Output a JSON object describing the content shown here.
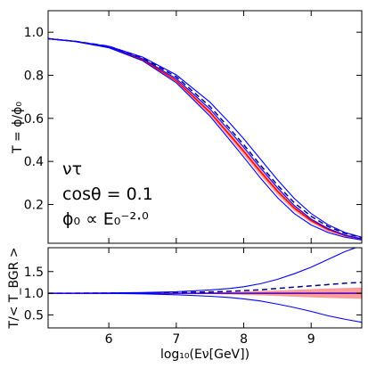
{
  "chart_data": [
    {
      "type": "line",
      "panel": "main",
      "ylabel": "T = ϕ/ϕ₀",
      "xlim": [
        5.1,
        9.75
      ],
      "ylim": [
        0.02,
        1.1
      ],
      "x_ticks": [
        6,
        7,
        8,
        9
      ],
      "y_ticks": [
        0.2,
        0.4,
        0.6,
        0.8,
        1.0
      ],
      "y_tick_labels": [
        "0.2",
        "0.4",
        "0.6",
        "0.8",
        "1.0"
      ],
      "annotations": [
        "ντ",
        "cosθ = 0.1",
        "ϕ₀ ∝ E₀⁻²·⁰"
      ],
      "x": [
        5.1,
        5.5,
        6.0,
        6.5,
        7.0,
        7.5,
        7.8,
        8.0,
        8.25,
        8.5,
        8.75,
        9.0,
        9.25,
        9.5,
        9.75
      ],
      "band": {
        "color": "#ff4d4d",
        "lower": [
          0.97,
          0.955,
          0.925,
          0.865,
          0.765,
          0.615,
          0.505,
          0.43,
          0.335,
          0.245,
          0.17,
          0.115,
          0.075,
          0.05,
          0.035
        ],
        "upper": [
          0.97,
          0.958,
          0.932,
          0.876,
          0.782,
          0.638,
          0.532,
          0.46,
          0.368,
          0.278,
          0.198,
          0.136,
          0.092,
          0.062,
          0.045
        ]
      },
      "series": [
        {
          "style": "solid",
          "color": "#ff0000",
          "values": [
            0.97,
            0.957,
            0.93,
            0.872,
            0.775,
            0.628,
            0.52,
            0.447,
            0.352,
            0.262,
            0.184,
            0.125,
            0.084,
            0.056,
            0.04
          ]
        },
        {
          "style": "dashed",
          "color": "#00008b",
          "values": [
            0.97,
            0.958,
            0.935,
            0.882,
            0.793,
            0.655,
            0.55,
            0.478,
            0.382,
            0.29,
            0.208,
            0.145,
            0.098,
            0.066,
            0.047
          ]
        },
        {
          "style": "solid",
          "color": "#0000ff",
          "values": [
            0.97,
            0.958,
            0.932,
            0.877,
            0.784,
            0.643,
            0.538,
            0.466,
            0.37,
            0.278,
            0.195,
            0.132,
            0.088,
            0.058,
            0.04
          ]
        },
        {
          "style": "solid",
          "color": "#0000ff",
          "values": [
            0.97,
            0.958,
            0.935,
            0.885,
            0.802,
            0.675,
            0.576,
            0.505,
            0.41,
            0.315,
            0.228,
            0.158,
            0.106,
            0.07,
            0.048
          ]
        },
        {
          "style": "solid",
          "color": "#0000ff",
          "values": [
            0.97,
            0.957,
            0.928,
            0.868,
            0.765,
            0.61,
            0.497,
            0.42,
            0.322,
            0.232,
            0.158,
            0.105,
            0.07,
            0.048,
            0.035
          ]
        }
      ]
    },
    {
      "type": "line",
      "panel": "ratio",
      "xlabel": "log₁₀(Eν[GeV])",
      "ylabel": "T/< T_BGR >",
      "xlim": [
        5.1,
        9.75
      ],
      "ylim": [
        0.2,
        2.05
      ],
      "x_ticks": [
        6,
        7,
        8,
        9
      ],
      "x_tick_labels": [
        "6",
        "7",
        "8",
        "9"
      ],
      "y_ticks": [
        0.5,
        1.0,
        1.5
      ],
      "y_tick_labels": [
        "0.5",
        "1.0",
        "1.5"
      ],
      "x": [
        5.1,
        5.5,
        6.0,
        6.5,
        7.0,
        7.5,
        7.8,
        8.0,
        8.25,
        8.5,
        8.75,
        9.0,
        9.25,
        9.5,
        9.75
      ],
      "band": {
        "color": "#ff4d4d",
        "lower": [
          1.0,
          1.0,
          0.998,
          0.995,
          0.99,
          0.98,
          0.97,
          0.96,
          0.95,
          0.935,
          0.92,
          0.905,
          0.89,
          0.88,
          0.87
        ],
        "upper": [
          1.0,
          1.0,
          1.002,
          1.005,
          1.01,
          1.02,
          1.03,
          1.04,
          1.05,
          1.065,
          1.08,
          1.095,
          1.11,
          1.12,
          1.13
        ]
      },
      "series": [
        {
          "style": "solid",
          "color": "#ff0000",
          "values": [
            1.0,
            1.0,
            1.0,
            1.0,
            1.0,
            1.0,
            1.0,
            1.0,
            1.0,
            1.0,
            1.0,
            1.0,
            1.0,
            1.0,
            1.0
          ]
        },
        {
          "style": "dashed",
          "color": "#00008b",
          "values": [
            1.0,
            1.0,
            1.003,
            1.008,
            1.015,
            1.03,
            1.045,
            1.06,
            1.08,
            1.11,
            1.14,
            1.17,
            1.2,
            1.23,
            1.25
          ]
        },
        {
          "style": "solid",
          "color": "#0000ff",
          "values": [
            1.0,
            1.0,
            1.0,
            1.0,
            1.0,
            1.0,
            1.0,
            1.0,
            1.0,
            1.0,
            1.0,
            1.0,
            1.0,
            1.0,
            1.0
          ]
        },
        {
          "style": "solid",
          "color": "#0000ff",
          "values": [
            1.0,
            1.0,
            1.006,
            1.015,
            1.035,
            1.075,
            1.11,
            1.15,
            1.22,
            1.32,
            1.45,
            1.6,
            1.78,
            1.96,
            2.1
          ]
        },
        {
          "style": "solid",
          "color": "#0000ff",
          "values": [
            1.0,
            1.0,
            0.995,
            0.985,
            0.965,
            0.93,
            0.9,
            0.87,
            0.82,
            0.75,
            0.67,
            0.58,
            0.48,
            0.4,
            0.33
          ]
        }
      ]
    }
  ]
}
